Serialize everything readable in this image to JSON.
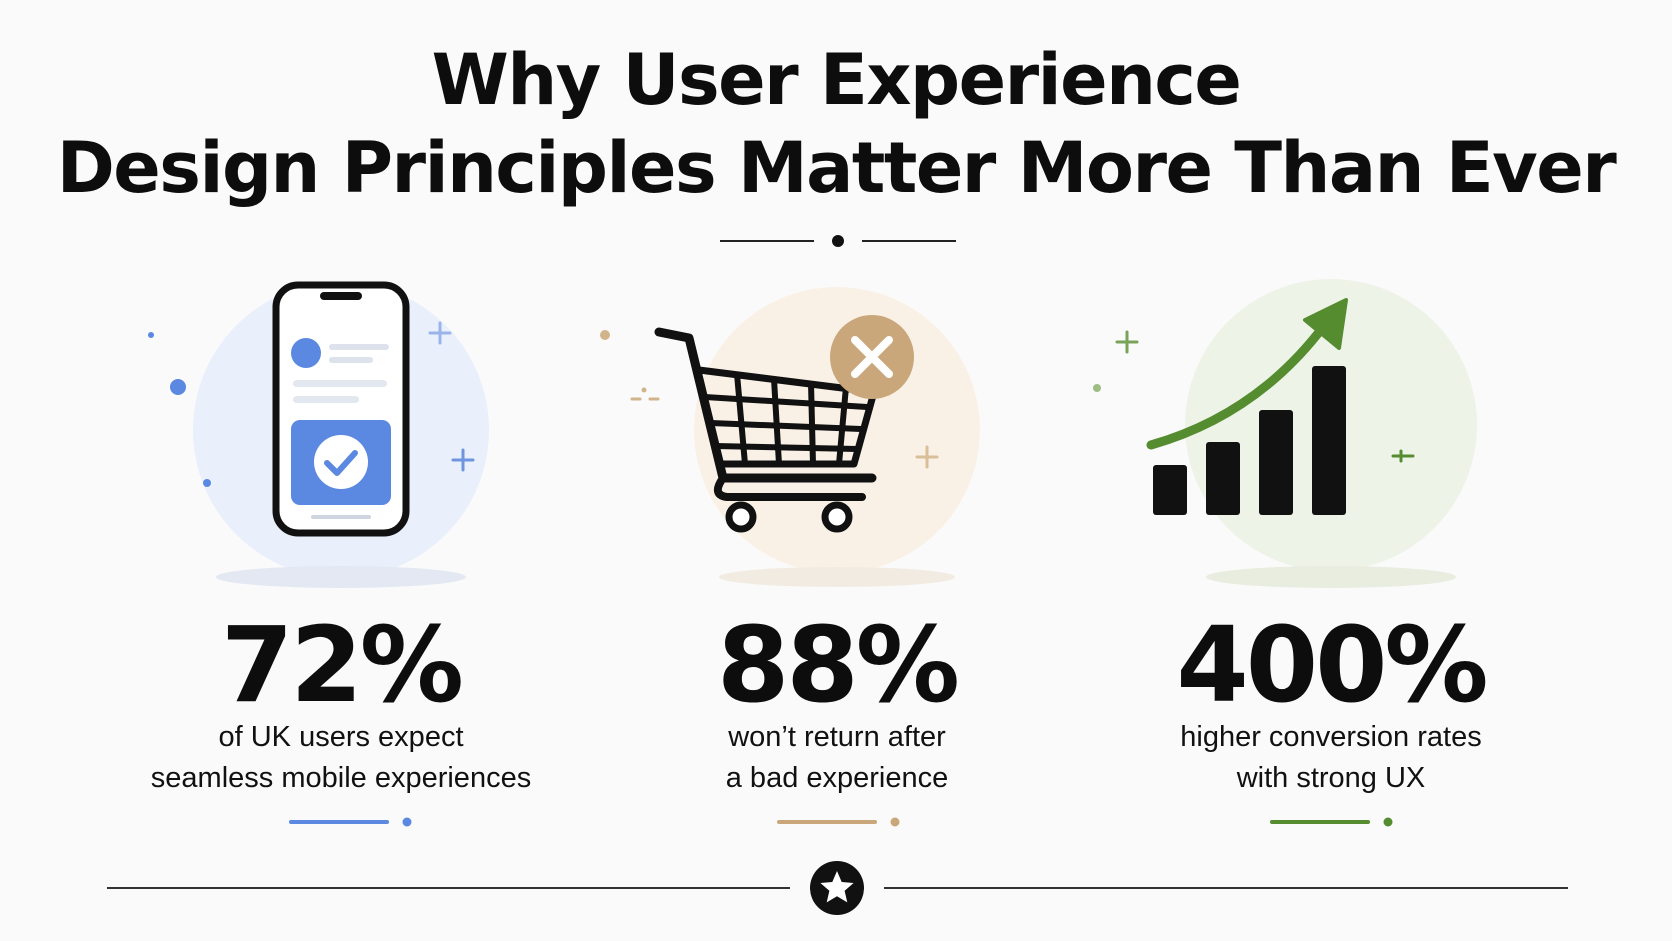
{
  "title": {
    "line1": "Why User Experience",
    "line2": "Design Principles Matter More Than Ever"
  },
  "colors": {
    "text": "#0d0d0d",
    "blue": "#5b88e0",
    "tan": "#c9a77a",
    "green": "#548c2f"
  },
  "stats": [
    {
      "value": "72%",
      "line1": "of UK users expect",
      "line2": "seamless mobile experiences",
      "icon": "smartphone-checkmark-icon"
    },
    {
      "value": "88%",
      "line1": "won’t return after",
      "line2": "a bad experience",
      "icon": "shopping-cart-x-icon"
    },
    {
      "value": "400%",
      "line1": "higher conversion rates",
      "line2": "with strong UX",
      "icon": "growth-bar-chart-icon"
    }
  ],
  "footer_icon": "star-icon"
}
